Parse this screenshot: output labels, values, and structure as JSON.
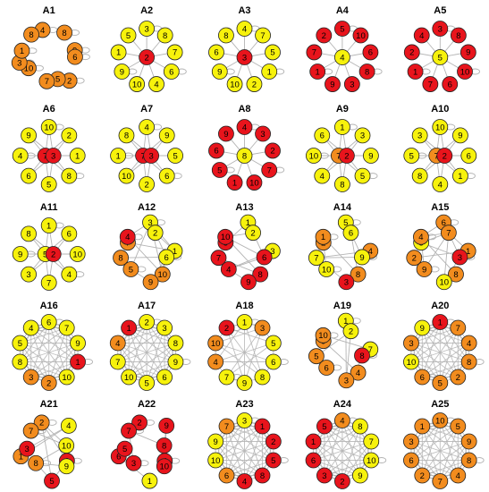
{
  "colors": {
    "red": "#e8141c",
    "orange": "#f28c1e",
    "yellow": "#f7f20c",
    "node_stroke": "#222222",
    "edge": "#b4b4b4",
    "label": "#000000"
  },
  "panels": [
    {
      "title": "A1",
      "layout": "random",
      "seed": 3,
      "nodes": [
        {
          "n": "4",
          "c": "orange"
        },
        {
          "n": "8",
          "c": "orange"
        },
        {
          "n": "9",
          "c": "orange"
        },
        {
          "n": "6",
          "c": "orange"
        },
        {
          "n": "2",
          "c": "orange"
        },
        {
          "n": "5",
          "c": "orange"
        },
        {
          "n": "7",
          "c": "orange"
        },
        {
          "n": "10",
          "c": "orange"
        },
        {
          "n": "3",
          "c": "orange"
        },
        {
          "n": "1",
          "c": "orange"
        },
        {
          "n": "8",
          "c": "orange"
        }
      ],
      "loops": true
    },
    {
      "title": "A2",
      "layout": "star",
      "center": {
        "n": "2",
        "c": "red"
      },
      "nodes": [
        {
          "n": "3",
          "c": "yellow"
        },
        {
          "n": "8",
          "c": "yellow"
        },
        {
          "n": "7",
          "c": "yellow"
        },
        {
          "n": "6",
          "c": "yellow"
        },
        {
          "n": "4",
          "c": "yellow"
        },
        {
          "n": "10",
          "c": "yellow"
        },
        {
          "n": "9",
          "c": "yellow"
        },
        {
          "n": "1",
          "c": "yellow"
        },
        {
          "n": "5",
          "c": "yellow"
        }
      ]
    },
    {
      "title": "A3",
      "layout": "star",
      "center": {
        "n": "3",
        "c": "red"
      },
      "nodes": [
        {
          "n": "4",
          "c": "yellow"
        },
        {
          "n": "7",
          "c": "yellow"
        },
        {
          "n": "5",
          "c": "yellow"
        },
        {
          "n": "1",
          "c": "yellow"
        },
        {
          "n": "2",
          "c": "yellow"
        },
        {
          "n": "10",
          "c": "yellow"
        },
        {
          "n": "9",
          "c": "yellow"
        },
        {
          "n": "6",
          "c": "yellow"
        },
        {
          "n": "8",
          "c": "yellow"
        }
      ]
    },
    {
      "title": "A4",
      "layout": "star",
      "center": {
        "n": "4",
        "c": "yellow"
      },
      "nodes": [
        {
          "n": "5",
          "c": "red"
        },
        {
          "n": "10",
          "c": "red"
        },
        {
          "n": "6",
          "c": "red"
        },
        {
          "n": "8",
          "c": "red"
        },
        {
          "n": "3",
          "c": "red"
        },
        {
          "n": "9",
          "c": "red"
        },
        {
          "n": "1",
          "c": "red"
        },
        {
          "n": "7",
          "c": "red"
        },
        {
          "n": "2",
          "c": "red"
        }
      ]
    },
    {
      "title": "A5",
      "layout": "star",
      "center": {
        "n": "5",
        "c": "yellow"
      },
      "nodes": [
        {
          "n": "3",
          "c": "red"
        },
        {
          "n": "8",
          "c": "red"
        },
        {
          "n": "9",
          "c": "red"
        },
        {
          "n": "10",
          "c": "red"
        },
        {
          "n": "6",
          "c": "red"
        },
        {
          "n": "7",
          "c": "red"
        },
        {
          "n": "1",
          "c": "red"
        },
        {
          "n": "2",
          "c": "red"
        },
        {
          "n": "4",
          "c": "red"
        }
      ]
    },
    {
      "title": "A6",
      "layout": "star2",
      "center": {
        "n": "7",
        "c": "red"
      },
      "center2": {
        "n": "3",
        "c": "red"
      },
      "nodes": [
        {
          "n": "10",
          "c": "yellow"
        },
        {
          "n": "2",
          "c": "yellow"
        },
        {
          "n": "1",
          "c": "yellow"
        },
        {
          "n": "8",
          "c": "yellow"
        },
        {
          "n": "5",
          "c": "yellow"
        },
        {
          "n": "6",
          "c": "yellow"
        },
        {
          "n": "4",
          "c": "yellow"
        },
        {
          "n": "9",
          "c": "yellow"
        }
      ]
    },
    {
      "title": "A7",
      "layout": "star2",
      "center": {
        "n": "7",
        "c": "red"
      },
      "center2": {
        "n": "3",
        "c": "red"
      },
      "nodes": [
        {
          "n": "4",
          "c": "yellow"
        },
        {
          "n": "9",
          "c": "yellow"
        },
        {
          "n": "5",
          "c": "yellow"
        },
        {
          "n": "6",
          "c": "yellow"
        },
        {
          "n": "2",
          "c": "yellow"
        },
        {
          "n": "10",
          "c": "yellow"
        },
        {
          "n": "1",
          "c": "yellow"
        },
        {
          "n": "8",
          "c": "yellow"
        }
      ]
    },
    {
      "title": "A8",
      "layout": "star",
      "center": {
        "n": "8",
        "c": "yellow"
      },
      "nodes": [
        {
          "n": "4",
          "c": "red"
        },
        {
          "n": "3",
          "c": "red"
        },
        {
          "n": "2",
          "c": "red"
        },
        {
          "n": "7",
          "c": "red"
        },
        {
          "n": "10",
          "c": "red"
        },
        {
          "n": "1",
          "c": "red"
        },
        {
          "n": "5",
          "c": "red"
        },
        {
          "n": "6",
          "c": "red"
        },
        {
          "n": "9",
          "c": "red"
        }
      ]
    },
    {
      "title": "A9",
      "layout": "star",
      "center": {
        "n": "7",
        "c": "orange"
      },
      "center2": {
        "n": "2",
        "c": "red"
      },
      "nodes": [
        {
          "n": "1",
          "c": "yellow"
        },
        {
          "n": "3",
          "c": "yellow"
        },
        {
          "n": "9",
          "c": "yellow"
        },
        {
          "n": "5",
          "c": "yellow"
        },
        {
          "n": "8",
          "c": "yellow"
        },
        {
          "n": "4",
          "c": "yellow"
        },
        {
          "n": "10",
          "c": "yellow"
        },
        {
          "n": "6",
          "c": "yellow"
        }
      ]
    },
    {
      "title": "A10",
      "layout": "star2",
      "center": {
        "n": "7",
        "c": "orange"
      },
      "center2": {
        "n": "2",
        "c": "red"
      },
      "nodes": [
        {
          "n": "10",
          "c": "yellow"
        },
        {
          "n": "9",
          "c": "yellow"
        },
        {
          "n": "6",
          "c": "yellow"
        },
        {
          "n": "1",
          "c": "yellow"
        },
        {
          "n": "4",
          "c": "yellow"
        },
        {
          "n": "8",
          "c": "yellow"
        },
        {
          "n": "5",
          "c": "yellow"
        },
        {
          "n": "3",
          "c": "yellow"
        }
      ]
    },
    {
      "title": "A11",
      "layout": "star2",
      "center": {
        "n": "5",
        "c": "yellow"
      },
      "center2": {
        "n": "2",
        "c": "red"
      },
      "nodes": [
        {
          "n": "1",
          "c": "yellow"
        },
        {
          "n": "6",
          "c": "yellow"
        },
        {
          "n": "10",
          "c": "yellow"
        },
        {
          "n": "4",
          "c": "yellow"
        },
        {
          "n": "7",
          "c": "yellow"
        },
        {
          "n": "3",
          "c": "yellow"
        },
        {
          "n": "9",
          "c": "yellow"
        },
        {
          "n": "8",
          "c": "yellow"
        }
      ]
    },
    {
      "title": "A12",
      "layout": "cluster",
      "nodes": [
        {
          "n": "3",
          "c": "yellow"
        },
        {
          "n": "2",
          "c": "yellow"
        },
        {
          "n": "1",
          "c": "yellow"
        },
        {
          "n": "6",
          "c": "yellow"
        },
        {
          "n": "10",
          "c": "orange"
        },
        {
          "n": "9",
          "c": "orange"
        },
        {
          "n": "5",
          "c": "orange"
        },
        {
          "n": "8",
          "c": "orange"
        },
        {
          "n": "7",
          "c": "orange"
        },
        {
          "n": "4",
          "c": "red"
        }
      ]
    },
    {
      "title": "A13",
      "layout": "cluster13",
      "nodes": [
        {
          "n": "1",
          "c": "yellow"
        },
        {
          "n": "2",
          "c": "yellow"
        },
        {
          "n": "3",
          "c": "yellow"
        },
        {
          "n": "6",
          "c": "red"
        },
        {
          "n": "8",
          "c": "red"
        },
        {
          "n": "9",
          "c": "red"
        },
        {
          "n": "4",
          "c": "red"
        },
        {
          "n": "7",
          "c": "red"
        },
        {
          "n": "5",
          "c": "red"
        },
        {
          "n": "10",
          "c": "red"
        }
      ]
    },
    {
      "title": "A14",
      "layout": "mixed",
      "nodes": [
        {
          "n": "5",
          "c": "yellow"
        },
        {
          "n": "6",
          "c": "yellow"
        },
        {
          "n": "4",
          "c": "orange"
        },
        {
          "n": "9",
          "c": "yellow"
        },
        {
          "n": "8",
          "c": "orange"
        },
        {
          "n": "3",
          "c": "red"
        },
        {
          "n": "10",
          "c": "yellow"
        },
        {
          "n": "7",
          "c": "yellow"
        },
        {
          "n": "2",
          "c": "orange"
        },
        {
          "n": "1",
          "c": "orange"
        }
      ]
    },
    {
      "title": "A15",
      "layout": "mixed",
      "nodes": [
        {
          "n": "6",
          "c": "orange"
        },
        {
          "n": "7",
          "c": "orange"
        },
        {
          "n": "1",
          "c": "orange"
        },
        {
          "n": "3",
          "c": "red"
        },
        {
          "n": "8",
          "c": "orange"
        },
        {
          "n": "10",
          "c": "yellow"
        },
        {
          "n": "9",
          "c": "orange"
        },
        {
          "n": "2",
          "c": "orange"
        },
        {
          "n": "5",
          "c": "yellow"
        },
        {
          "n": "4",
          "c": "orange"
        }
      ]
    },
    {
      "title": "A16",
      "layout": "dense",
      "nodes": [
        {
          "n": "6",
          "c": "yellow"
        },
        {
          "n": "7",
          "c": "yellow"
        },
        {
          "n": "9",
          "c": "yellow"
        },
        {
          "n": "1",
          "c": "red"
        },
        {
          "n": "10",
          "c": "yellow"
        },
        {
          "n": "2",
          "c": "orange"
        },
        {
          "n": "3",
          "c": "orange"
        },
        {
          "n": "8",
          "c": "yellow"
        },
        {
          "n": "5",
          "c": "yellow"
        },
        {
          "n": "4",
          "c": "yellow"
        }
      ]
    },
    {
      "title": "A17",
      "layout": "dense",
      "nodes": [
        {
          "n": "2",
          "c": "yellow"
        },
        {
          "n": "3",
          "c": "yellow"
        },
        {
          "n": "8",
          "c": "yellow"
        },
        {
          "n": "9",
          "c": "yellow"
        },
        {
          "n": "6",
          "c": "yellow"
        },
        {
          "n": "5",
          "c": "yellow"
        },
        {
          "n": "10",
          "c": "yellow"
        },
        {
          "n": "7",
          "c": "yellow"
        },
        {
          "n": "4",
          "c": "orange"
        },
        {
          "n": "1",
          "c": "red"
        }
      ]
    },
    {
      "title": "A18",
      "layout": "ring_center",
      "nodes": [
        {
          "n": "1",
          "c": "yellow"
        },
        {
          "n": "3",
          "c": "orange"
        },
        {
          "n": "5",
          "c": "yellow"
        },
        {
          "n": "6",
          "c": "yellow"
        },
        {
          "n": "8",
          "c": "yellow"
        },
        {
          "n": "9",
          "c": "yellow"
        },
        {
          "n": "7",
          "c": "yellow"
        },
        {
          "n": "4",
          "c": "orange"
        },
        {
          "n": "10",
          "c": "orange"
        },
        {
          "n": "2",
          "c": "red"
        }
      ]
    },
    {
      "title": "A19",
      "layout": "cluster19",
      "nodes": [
        {
          "n": "1",
          "c": "yellow"
        },
        {
          "n": "2",
          "c": "yellow"
        },
        {
          "n": "7",
          "c": "yellow"
        },
        {
          "n": "8",
          "c": "red"
        },
        {
          "n": "4",
          "c": "orange"
        },
        {
          "n": "3",
          "c": "orange"
        },
        {
          "n": "6",
          "c": "orange"
        },
        {
          "n": "5",
          "c": "orange"
        },
        {
          "n": "9",
          "c": "orange"
        },
        {
          "n": "10",
          "c": "orange"
        }
      ]
    },
    {
      "title": "A20",
      "layout": "dense",
      "nodes": [
        {
          "n": "1",
          "c": "red"
        },
        {
          "n": "7",
          "c": "orange"
        },
        {
          "n": "4",
          "c": "orange"
        },
        {
          "n": "8",
          "c": "orange"
        },
        {
          "n": "2",
          "c": "orange"
        },
        {
          "n": "5",
          "c": "orange"
        },
        {
          "n": "6",
          "c": "orange"
        },
        {
          "n": "10",
          "c": "yellow"
        },
        {
          "n": "3",
          "c": "orange"
        },
        {
          "n": "9",
          "c": "yellow"
        }
      ]
    },
    {
      "title": "A21",
      "layout": "mixed21",
      "nodes": [
        {
          "n": "2",
          "c": "orange"
        },
        {
          "n": "4",
          "c": "yellow"
        },
        {
          "n": "10",
          "c": "yellow"
        },
        {
          "n": "6",
          "c": "red"
        },
        {
          "n": "9",
          "c": "yellow"
        },
        {
          "n": "5",
          "c": "red"
        },
        {
          "n": "8",
          "c": "orange"
        },
        {
          "n": "1",
          "c": "orange"
        },
        {
          "n": "3",
          "c": "red"
        },
        {
          "n": "7",
          "c": "orange"
        }
      ]
    },
    {
      "title": "A22",
      "layout": "mixed22",
      "nodes": [
        {
          "n": "2",
          "c": "red"
        },
        {
          "n": "9",
          "c": "red"
        },
        {
          "n": "8",
          "c": "red"
        },
        {
          "n": "4",
          "c": "red"
        },
        {
          "n": "10",
          "c": "red"
        },
        {
          "n": "1",
          "c": "yellow"
        },
        {
          "n": "3",
          "c": "red"
        },
        {
          "n": "6",
          "c": "red"
        },
        {
          "n": "5",
          "c": "red"
        },
        {
          "n": "7",
          "c": "red"
        }
      ]
    },
    {
      "title": "A23",
      "layout": "dense",
      "nodes": [
        {
          "n": "3",
          "c": "yellow"
        },
        {
          "n": "1",
          "c": "red"
        },
        {
          "n": "2",
          "c": "red"
        },
        {
          "n": "5",
          "c": "red"
        },
        {
          "n": "8",
          "c": "red"
        },
        {
          "n": "4",
          "c": "red"
        },
        {
          "n": "6",
          "c": "orange"
        },
        {
          "n": "10",
          "c": "yellow"
        },
        {
          "n": "9",
          "c": "yellow"
        },
        {
          "n": "7",
          "c": "orange"
        }
      ]
    },
    {
      "title": "A24",
      "layout": "dense",
      "nodes": [
        {
          "n": "4",
          "c": "orange"
        },
        {
          "n": "8",
          "c": "yellow"
        },
        {
          "n": "7",
          "c": "yellow"
        },
        {
          "n": "10",
          "c": "yellow"
        },
        {
          "n": "9",
          "c": "yellow"
        },
        {
          "n": "2",
          "c": "red"
        },
        {
          "n": "3",
          "c": "red"
        },
        {
          "n": "6",
          "c": "red"
        },
        {
          "n": "1",
          "c": "red"
        },
        {
          "n": "5",
          "c": "red"
        }
      ]
    },
    {
      "title": "A25",
      "layout": "dense",
      "nodes": [
        {
          "n": "10",
          "c": "orange"
        },
        {
          "n": "5",
          "c": "orange"
        },
        {
          "n": "9",
          "c": "orange"
        },
        {
          "n": "8",
          "c": "orange"
        },
        {
          "n": "4",
          "c": "orange"
        },
        {
          "n": "7",
          "c": "orange"
        },
        {
          "n": "2",
          "c": "orange"
        },
        {
          "n": "6",
          "c": "orange"
        },
        {
          "n": "3",
          "c": "orange"
        },
        {
          "n": "1",
          "c": "orange"
        }
      ]
    }
  ]
}
